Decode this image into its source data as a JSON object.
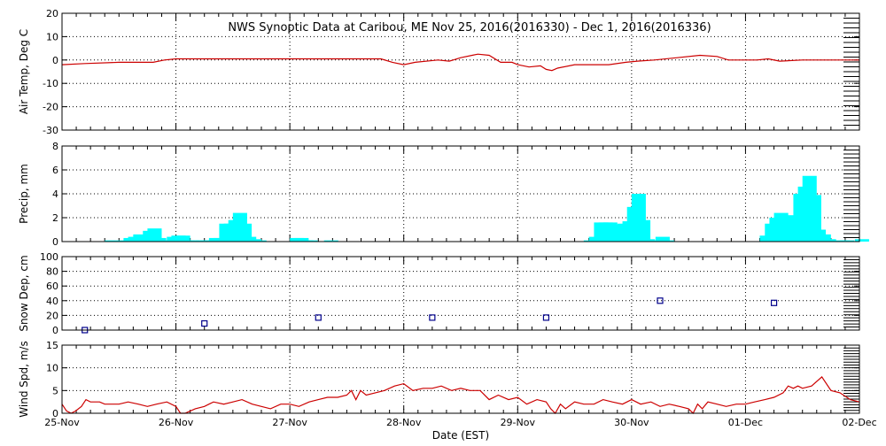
{
  "title": "NWS Synoptic Data at Caribou, ME   Nov 25, 2016(2016330) - Dec  1, 2016(2016336)",
  "xlabel": "Date (EST)",
  "x_ticks": [
    "25-Nov",
    "26-Nov",
    "27-Nov",
    "28-Nov",
    "29-Nov",
    "30-Nov",
    "01-Dec",
    "02-Dec"
  ],
  "chart_data": [
    {
      "type": "line",
      "ylabel": "Air Temp, Deg C",
      "ylim": [
        -30,
        20
      ],
      "yticks": [
        20,
        10,
        0,
        -10,
        -20,
        -30
      ],
      "xlim": [
        0,
        7
      ],
      "grid": true,
      "color": "#cc0000",
      "x": [
        0,
        0.2,
        0.5,
        0.8,
        0.9,
        1.0,
        1.2,
        1.5,
        2.0,
        2.4,
        2.8,
        2.9,
        3.0,
        3.1,
        3.3,
        3.4,
        3.5,
        3.6,
        3.65,
        3.75,
        3.85,
        3.95,
        4.0,
        4.1,
        4.2,
        4.25,
        4.3,
        4.35,
        4.5,
        4.6,
        4.8,
        4.95,
        5.05,
        5.2,
        5.4,
        5.6,
        5.75,
        5.85,
        6.0,
        6.1,
        6.2,
        6.3,
        6.5,
        6.8,
        7.0
      ],
      "values": [
        -2,
        -1.5,
        -1,
        -1,
        0,
        0.5,
        0.5,
        0.5,
        0.5,
        0.5,
        0.5,
        -1,
        -2,
        -1,
        0,
        -0.5,
        1,
        2,
        2.5,
        2,
        -1,
        -1,
        -2,
        -3,
        -2.5,
        -4,
        -4.5,
        -3.5,
        -2,
        -2,
        -2,
        -1,
        -0.5,
        0,
        1,
        2,
        1.5,
        0,
        0,
        0,
        0.5,
        -0.5,
        0,
        0,
        0
      ]
    },
    {
      "type": "bar",
      "ylabel": "Precip, mm",
      "ylim": [
        0,
        8
      ],
      "yticks": [
        8,
        6,
        4,
        2,
        0
      ],
      "xlim": [
        0,
        7
      ],
      "grid": true,
      "color": "#00ffff",
      "bin_hours": 3,
      "x": [
        0.375,
        0.5,
        0.54,
        0.58,
        0.625,
        0.67,
        0.71,
        0.75,
        0.79,
        0.83,
        0.875,
        0.92,
        0.96,
        1.0,
        1.04,
        1.08,
        1.17,
        1.21,
        1.25,
        1.29,
        1.33,
        1.38,
        1.42,
        1.46,
        1.5,
        1.54,
        1.58,
        1.625,
        1.67,
        2.0,
        2.04,
        2.08,
        2.12,
        2.3,
        4.58,
        4.625,
        4.67,
        4.71,
        4.75,
        4.79,
        4.83,
        4.875,
        4.92,
        4.96,
        5.0,
        5.04,
        5.08,
        5.125,
        5.17,
        5.21,
        5.25,
        6.125,
        6.17,
        6.21,
        6.25,
        6.29,
        6.33,
        6.375,
        6.42,
        6.46,
        6.5,
        6.54,
        6.58,
        6.625,
        6.67,
        6.79,
        6.83,
        6.96
      ],
      "values": [
        0.1,
        0.1,
        0.3,
        0.4,
        0.6,
        0.3,
        0.9,
        1.1,
        0.3,
        0.1,
        0.1,
        0.4,
        0.5,
        0.5,
        0.1,
        0.1,
        0.1,
        0.1,
        0.1,
        0.3,
        0.3,
        1.5,
        1.5,
        1.8,
        2.4,
        1.5,
        0.4,
        0.2,
        0.1,
        0.3,
        0.3,
        0.1,
        0.1,
        0.1,
        0.1,
        0.4,
        1.6,
        1.6,
        1.6,
        1.4,
        1.4,
        1.5,
        1.7,
        2.9,
        4.0,
        1.8,
        0.2,
        0.1,
        0.1,
        0.4,
        0.1,
        0.5,
        1.5,
        2.0,
        2.4,
        2.1,
        2.2,
        2.2,
        4.0,
        4.6,
        5.5,
        3.9,
        1.0,
        0.6,
        0.2,
        0.1,
        0.1,
        0.2
      ]
    },
    {
      "type": "scatter",
      "ylabel": "Snow Dep, cm",
      "ylim": [
        0,
        100
      ],
      "yticks": [
        100,
        80,
        60,
        40,
        20,
        0
      ],
      "xlim": [
        0,
        7
      ],
      "grid": true,
      "color": "#00008b",
      "x": [
        0.2,
        1.25,
        2.25,
        3.25,
        4.25,
        5.25,
        6.25
      ],
      "values": [
        0,
        9,
        17,
        17,
        17,
        40,
        37
      ]
    },
    {
      "type": "line",
      "ylabel": "Wind Spd, m/s",
      "ylim": [
        0,
        15
      ],
      "yticks": [
        15,
        10,
        5,
        0
      ],
      "xlim": [
        0,
        7
      ],
      "grid": true,
      "color": "#cc0000",
      "x": [
        0,
        0.04,
        0.08,
        0.12,
        0.17,
        0.21,
        0.25,
        0.29,
        0.33,
        0.375,
        0.42,
        0.5,
        0.58,
        0.67,
        0.75,
        0.83,
        0.92,
        1.0,
        1.04,
        1.08,
        1.17,
        1.25,
        1.29,
        1.33,
        1.42,
        1.5,
        1.58,
        1.67,
        1.75,
        1.83,
        1.92,
        2.0,
        2.08,
        2.17,
        2.25,
        2.33,
        2.42,
        2.5,
        2.54,
        2.58,
        2.62,
        2.67,
        2.75,
        2.83,
        2.92,
        3.0,
        3.08,
        3.17,
        3.25,
        3.33,
        3.42,
        3.5,
        3.58,
        3.67,
        3.75,
        3.83,
        3.92,
        4.0,
        4.08,
        4.17,
        4.25,
        4.29,
        4.33,
        4.375,
        4.42,
        4.5,
        4.58,
        4.67,
        4.75,
        4.83,
        4.92,
        5.0,
        5.08,
        5.17,
        5.25,
        5.33,
        5.42,
        5.5,
        5.54,
        5.58,
        5.62,
        5.67,
        5.75,
        5.83,
        5.92,
        6.0,
        6.08,
        6.17,
        6.25,
        6.33,
        6.375,
        6.42,
        6.46,
        6.5,
        6.58,
        6.67,
        6.75,
        6.83,
        6.92,
        7.0
      ],
      "values": [
        2,
        0.5,
        0,
        0.5,
        1.5,
        3,
        2.5,
        2.5,
        2.5,
        2,
        2,
        2,
        2.5,
        2,
        1.5,
        2,
        2.5,
        1.5,
        0,
        0,
        1,
        1.5,
        2,
        2.5,
        2,
        2.5,
        3,
        2,
        1.5,
        1,
        2,
        2,
        1.5,
        2.5,
        3,
        3.5,
        3.5,
        4,
        5,
        3,
        5,
        4,
        4.5,
        5,
        6,
        6.5,
        5,
        5.5,
        5.5,
        6,
        5,
        5.5,
        5,
        5,
        3,
        4,
        3,
        3.5,
        2,
        3,
        2.5,
        1,
        0,
        2,
        1,
        2.5,
        2,
        2,
        3,
        2.5,
        2,
        3,
        2,
        2.5,
        1.5,
        2,
        1.5,
        1,
        0,
        2,
        1,
        2.5,
        2,
        1.5,
        2,
        2,
        2.5,
        3,
        3.5,
        4.5,
        6,
        5.5,
        6,
        5.5,
        6,
        8,
        5,
        4.5,
        3,
        2.5
      ]
    }
  ]
}
